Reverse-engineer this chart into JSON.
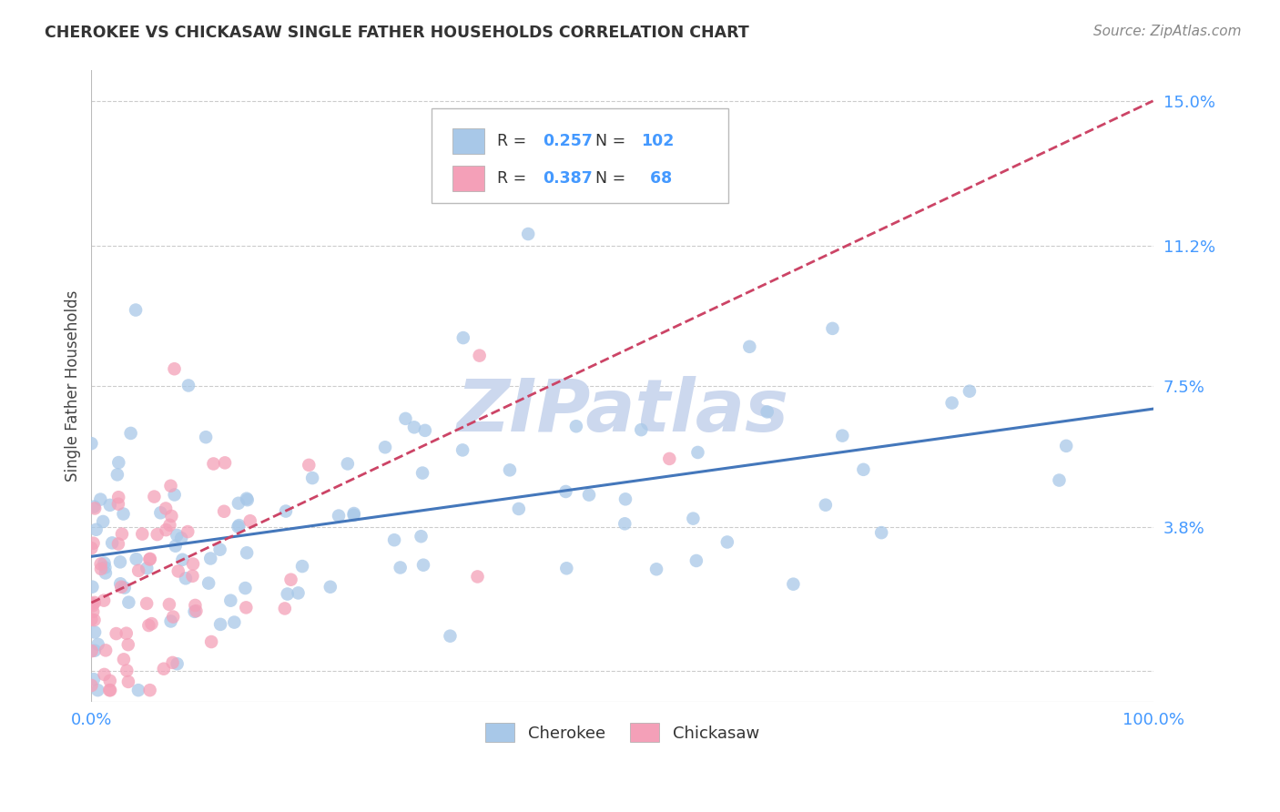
{
  "title": "CHEROKEE VS CHICKASAW SINGLE FATHER HOUSEHOLDS CORRELATION CHART",
  "source": "Source: ZipAtlas.com",
  "ylabel": "Single Father Households",
  "xlim": [
    0,
    1.0
  ],
  "ylim": [
    -0.008,
    0.158
  ],
  "yticks": [
    0.0,
    0.038,
    0.075,
    0.112,
    0.15
  ],
  "ytick_labels": [
    "",
    "3.8%",
    "7.5%",
    "11.2%",
    "15.0%"
  ],
  "cherokee_R": 0.257,
  "cherokee_N": 102,
  "chickasaw_R": 0.387,
  "chickasaw_N": 68,
  "cherokee_color": "#a8c8e8",
  "cherokee_line_color": "#4477bb",
  "chickasaw_color": "#f4a0b8",
  "chickasaw_line_color": "#cc3355",
  "chickasaw_trend_color": "#cc4466",
  "background_color": "#ffffff",
  "grid_color": "#cccccc",
  "title_color": "#333333",
  "axis_color": "#4499ff",
  "watermark_color": "#ccd8ee",
  "cherokee_seed": 42,
  "chickasaw_seed": 123
}
